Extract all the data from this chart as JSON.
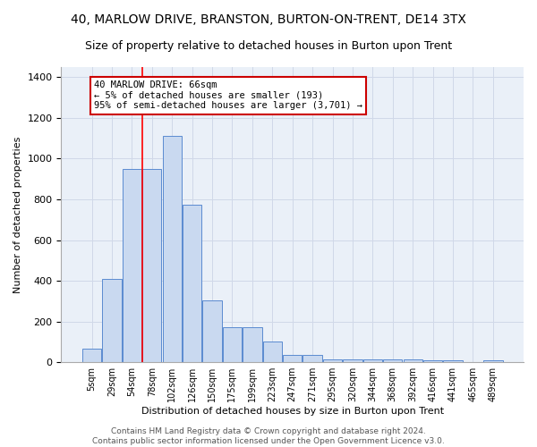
{
  "title1": "40, MARLOW DRIVE, BRANSTON, BURTON-ON-TRENT, DE14 3TX",
  "title2": "Size of property relative to detached houses in Burton upon Trent",
  "xlabel": "Distribution of detached houses by size in Burton upon Trent",
  "ylabel": "Number of detached properties",
  "footer1": "Contains HM Land Registry data © Crown copyright and database right 2024.",
  "footer2": "Contains public sector information licensed under the Open Government Licence v3.0.",
  "bar_labels": [
    "5sqm",
    "29sqm",
    "54sqm",
    "78sqm",
    "102sqm",
    "126sqm",
    "150sqm",
    "175sqm",
    "199sqm",
    "223sqm",
    "247sqm",
    "271sqm",
    "295sqm",
    "320sqm",
    "344sqm",
    "368sqm",
    "392sqm",
    "416sqm",
    "441sqm",
    "465sqm",
    "489sqm"
  ],
  "bar_values": [
    65,
    410,
    950,
    950,
    1110,
    775,
    305,
    170,
    170,
    100,
    35,
    35,
    15,
    15,
    15,
    12,
    12,
    10,
    10,
    0,
    10
  ],
  "bar_color": "#c9d9f0",
  "bar_edge_color": "#5b8bd0",
  "grid_color": "#d0d8e8",
  "bg_color": "#eaf0f8",
  "red_line_x": 2.5,
  "annotation_text": "40 MARLOW DRIVE: 66sqm\n← 5% of detached houses are smaller (193)\n95% of semi-detached houses are larger (3,701) →",
  "annotation_box_color": "#ffffff",
  "annotation_border_color": "#cc0000",
  "ylim": [
    0,
    1450
  ],
  "title1_fontsize": 10,
  "title2_fontsize": 9,
  "annot_fontsize": 7.5,
  "ylabel_fontsize": 8,
  "xlabel_fontsize": 8,
  "tick_fontsize": 7,
  "footer_fontsize": 6.5
}
